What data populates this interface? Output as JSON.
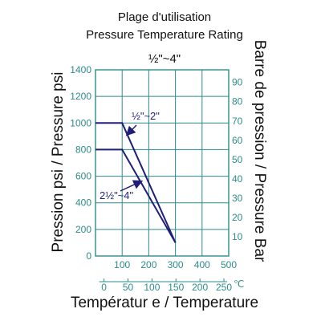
{
  "chart_data": {
    "type": "line",
    "title_fr": "Plage d'utilisation",
    "title_en": "Pressure Temperature Rating",
    "size_label": "½\"~4\"",
    "ylabel_left": "Pression psi / Pressure psi",
    "ylabel_right": "Barre de pression / Pressure Bar",
    "xlabel": "Températur e / Temperature",
    "x_unit_c": "℃",
    "xlim_f": [
      0,
      500
    ],
    "ylim_psi": [
      0,
      1400
    ],
    "x_ticks_f": [
      "100",
      "200",
      "300",
      "400",
      "500"
    ],
    "x_ticks_c": [
      "0",
      "50",
      "100",
      "150",
      "200",
      "250"
    ],
    "y_ticks_psi": [
      "0",
      "200",
      "400",
      "600",
      "800",
      "1000",
      "1200",
      "1400"
    ],
    "y_ticks_bar": [
      "10",
      "20",
      "30",
      "40",
      "50",
      "60",
      "70",
      "80",
      "90"
    ],
    "series": [
      {
        "name": "½\"~2\"",
        "x": [
          0,
          100,
          300
        ],
        "y": [
          1000,
          1000,
          100
        ]
      },
      {
        "name": "2½\"~4\"",
        "x": [
          0,
          100,
          300
        ],
        "y": [
          800,
          800,
          100
        ]
      }
    ],
    "grid": true,
    "colors": {
      "grid": "#2e8b8b",
      "frame": "#2e8b8b",
      "series": "#1f1f7a",
      "tick_text": "#2e8b8b"
    }
  }
}
